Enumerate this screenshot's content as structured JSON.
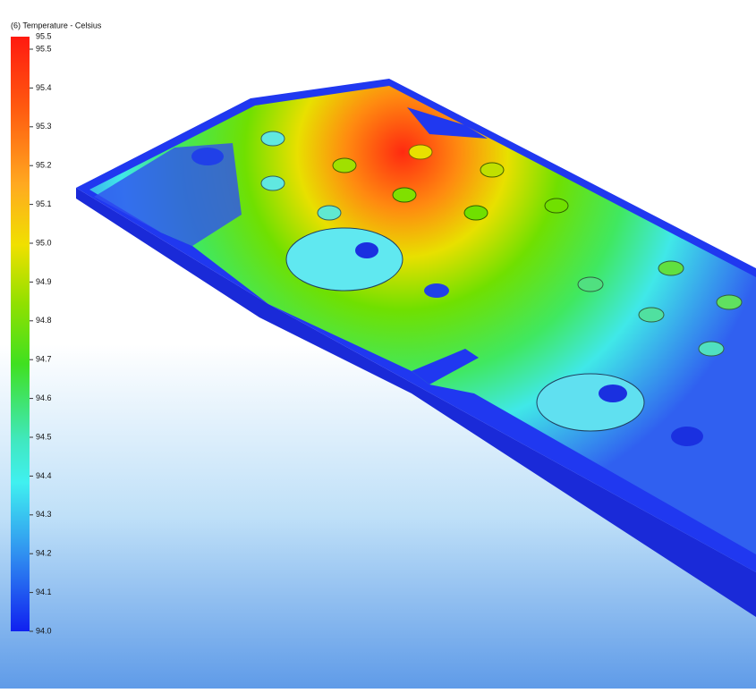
{
  "legend": {
    "title": "(6) Temperature - Celsius",
    "max_label": "95.5",
    "ticks": [
      "95.5",
      "95.4",
      "95.3",
      "95.2",
      "95.1",
      "95.0",
      "94.9",
      "94.8",
      "94.7",
      "94.6",
      "94.5",
      "94.4",
      "94.3",
      "94.2",
      "94.1",
      "94.0"
    ]
  }
}
